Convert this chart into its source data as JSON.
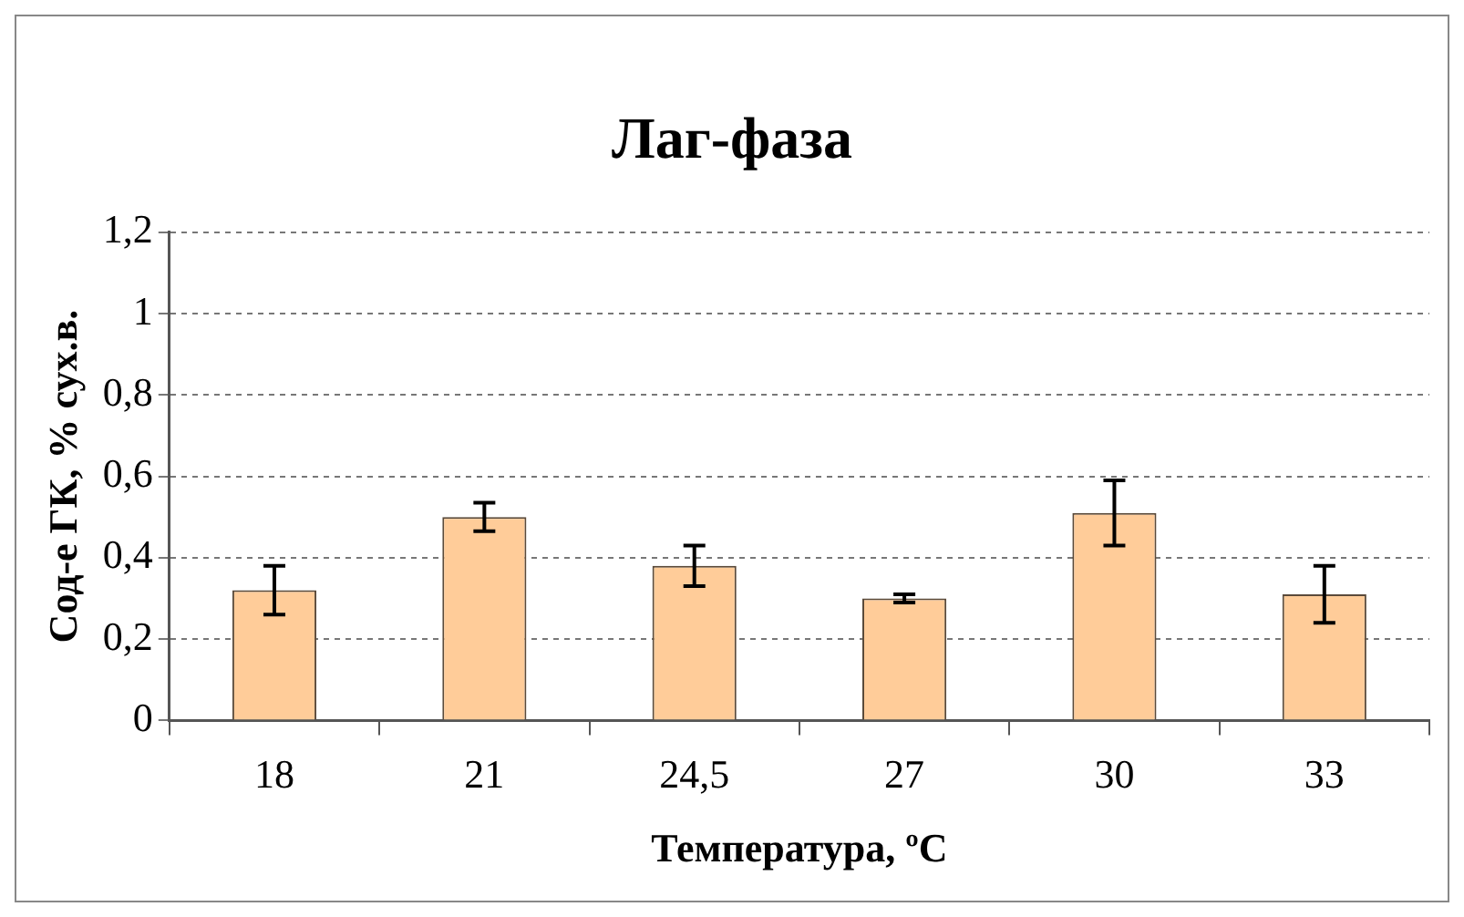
{
  "chart_data": {
    "type": "bar",
    "title": "Лаг-фаза",
    "xlabel": "Температура, ºС",
    "ylabel": "Сод-е ГК, % сух.в.",
    "categories": [
      "18",
      "21",
      "24,5",
      "27",
      "30",
      "33"
    ],
    "values": [
      0.32,
      0.5,
      0.38,
      0.3,
      0.51,
      0.31
    ],
    "errors": [
      0.06,
      0.035,
      0.05,
      0.01,
      0.08,
      0.07
    ],
    "color": "#ffcc99",
    "ylim": [
      0,
      1.2
    ],
    "yticks": [
      {
        "value": 0,
        "label": "0"
      },
      {
        "value": 0.2,
        "label": "0,2"
      },
      {
        "value": 0.4,
        "label": "0,4"
      },
      {
        "value": 0.6,
        "label": "0,6"
      },
      {
        "value": 0.8,
        "label": "0,8"
      },
      {
        "value": 1,
        "label": "1"
      },
      {
        "value": 1.2,
        "label": "1,2"
      }
    ],
    "grid": "y",
    "legend": false
  }
}
